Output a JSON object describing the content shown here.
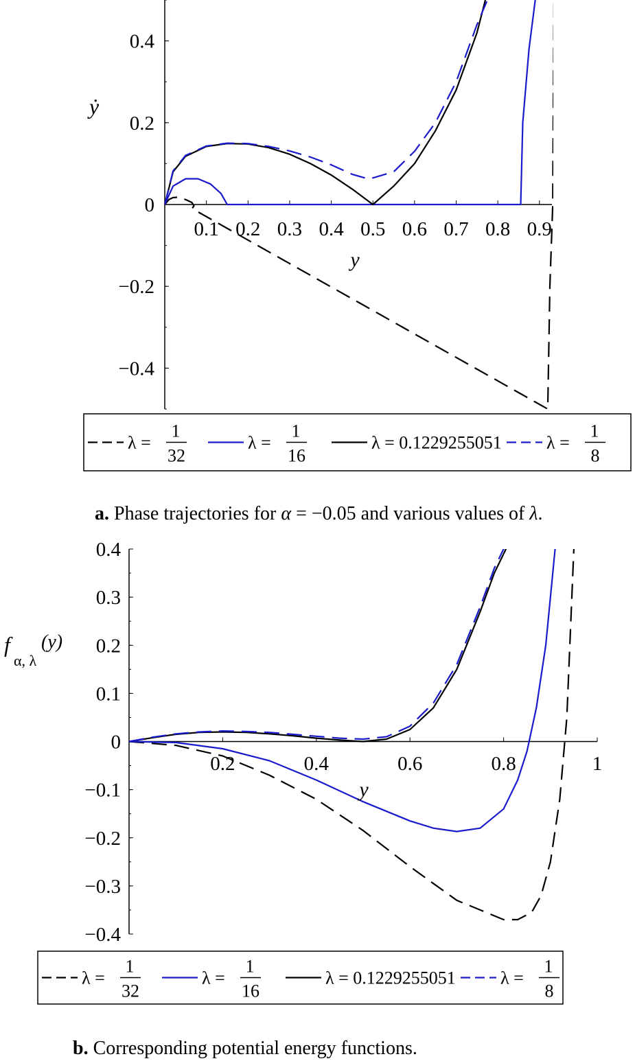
{
  "chart_data": [
    {
      "type": "line",
      "panel": "a",
      "xlabel": "y",
      "ylabel": "ẏ",
      "xlim": [
        0,
        0.93
      ],
      "ylim": [
        -0.5,
        0.5
      ],
      "xticks": [
        "0.1",
        "0.2",
        "0.3",
        "0.4",
        "0.5",
        "0.6",
        "0.7",
        "0.8",
        "0.9"
      ],
      "yticks": [
        "0.4",
        "0.2",
        "0",
        "−0.2",
        "−0.4"
      ],
      "series": [
        {
          "name": "λ = 1/32",
          "color": "#000000",
          "style": "dashed",
          "x": [
            0,
            0.01,
            0.02,
            0.035,
            0.05,
            0.065,
            0.07,
            0.066,
            0.92,
            0.925,
            0.932,
            0.935
          ],
          "y": [
            0,
            0.012,
            0.017,
            0.018,
            0.012,
            0.005,
            -0.003,
            -0.01,
            -0.5,
            -0.2,
            0,
            0.5
          ]
        },
        {
          "name": "λ = 1/16",
          "color": "#1a1acc",
          "style": "solid",
          "x": [
            0,
            0.02,
            0.05,
            0.08,
            0.11,
            0.135,
            0.15,
            0.855,
            0.86,
            0.875,
            0.89
          ],
          "y": [
            0,
            0.045,
            0.063,
            0.063,
            0.05,
            0.027,
            0,
            0,
            0.2,
            0.38,
            0.5
          ]
        },
        {
          "name": "λ = 0.1229255051",
          "color": "#000000",
          "style": "solid",
          "x": [
            0,
            0.02,
            0.05,
            0.1,
            0.15,
            0.2,
            0.25,
            0.3,
            0.35,
            0.4,
            0.45,
            0.5,
            0.55,
            0.6,
            0.65,
            0.7,
            0.75,
            0.77
          ],
          "y": [
            0,
            0.08,
            0.118,
            0.142,
            0.149,
            0.148,
            0.139,
            0.123,
            0.1,
            0.072,
            0.038,
            0,
            0.045,
            0.1,
            0.18,
            0.28,
            0.42,
            0.5
          ]
        },
        {
          "name": "λ = 1/8",
          "color": "#1a1acc",
          "style": "dashed",
          "x": [
            0,
            0.02,
            0.05,
            0.1,
            0.15,
            0.2,
            0.25,
            0.3,
            0.35,
            0.4,
            0.45,
            0.49,
            0.55,
            0.6,
            0.65,
            0.7,
            0.75,
            0.775
          ],
          "y": [
            0,
            0.082,
            0.12,
            0.143,
            0.15,
            0.149,
            0.142,
            0.131,
            0.116,
            0.097,
            0.074,
            0.062,
            0.08,
            0.13,
            0.2,
            0.3,
            0.44,
            0.5
          ]
        }
      ],
      "legend": {
        "position": "bottom",
        "items": [
          {
            "prefix": "λ =",
            "num": "1",
            "den": "32",
            "color": "#000000",
            "style": "dashed"
          },
          {
            "prefix": "λ =",
            "num": "1",
            "den": "16",
            "color": "#1a1acc",
            "style": "solid"
          },
          {
            "prefix": "λ = 0.1229255051",
            "num": "",
            "den": "",
            "color": "#000000",
            "style": "solid"
          },
          {
            "prefix": "λ =",
            "num": "1",
            "den": "8",
            "color": "#1a1acc",
            "style": "dashed"
          }
        ]
      }
    },
    {
      "type": "line",
      "panel": "b",
      "xlabel": "y",
      "ylabel_main": "f",
      "ylabel_sub": "α, λ",
      "ylabel_arg": "(y)",
      "xlim": [
        0,
        1
      ],
      "ylim": [
        -0.4,
        0.4
      ],
      "xticks": [
        "0.2",
        "0.4",
        "0.6",
        "0.8",
        "1"
      ],
      "yticks": [
        "0.4",
        "0.3",
        "0.2",
        "0.1",
        "0",
        "−0.1",
        "−0.2",
        "−0.3",
        "−0.4"
      ],
      "series": [
        {
          "name": "λ = 1/32",
          "color": "#000000",
          "style": "dashed",
          "x": [
            0,
            0.1,
            0.2,
            0.3,
            0.4,
            0.5,
            0.6,
            0.7,
            0.8,
            0.83,
            0.86,
            0.88,
            0.9,
            0.92,
            0.935,
            0.95
          ],
          "y": [
            0,
            -0.008,
            -0.03,
            -0.07,
            -0.12,
            -0.185,
            -0.26,
            -0.33,
            -0.37,
            -0.37,
            -0.355,
            -0.32,
            -0.25,
            -0.12,
            0.05,
            0.4
          ]
        },
        {
          "name": "λ = 1/16",
          "color": "#1a1acc",
          "style": "solid",
          "x": [
            0,
            0.1,
            0.2,
            0.3,
            0.4,
            0.5,
            0.6,
            0.65,
            0.7,
            0.75,
            0.8,
            0.83,
            0.85,
            0.87,
            0.89,
            0.91
          ],
          "y": [
            0,
            -0.002,
            -0.015,
            -0.04,
            -0.08,
            -0.125,
            -0.165,
            -0.18,
            -0.187,
            -0.18,
            -0.14,
            -0.08,
            -0.02,
            0.07,
            0.2,
            0.4
          ]
        },
        {
          "name": "λ = 0.1229255051",
          "color": "#000000",
          "style": "solid",
          "x": [
            0,
            0.05,
            0.1,
            0.15,
            0.2,
            0.25,
            0.3,
            0.35,
            0.4,
            0.45,
            0.5,
            0.55,
            0.6,
            0.65,
            0.7,
            0.75,
            0.78,
            0.81
          ],
          "y": [
            0,
            0.008,
            0.015,
            0.019,
            0.02,
            0.019,
            0.016,
            0.012,
            0.007,
            0.003,
            0,
            0.005,
            0.025,
            0.07,
            0.15,
            0.27,
            0.35,
            0.41
          ]
        },
        {
          "name": "λ = 1/8",
          "color": "#1a1acc",
          "style": "dashed",
          "x": [
            0,
            0.05,
            0.1,
            0.15,
            0.2,
            0.25,
            0.3,
            0.35,
            0.4,
            0.45,
            0.5,
            0.55,
            0.6,
            0.65,
            0.7,
            0.75,
            0.78,
            0.805
          ],
          "y": [
            0,
            0.009,
            0.016,
            0.02,
            0.022,
            0.021,
            0.019,
            0.015,
            0.011,
            0.007,
            0.005,
            0.01,
            0.032,
            0.08,
            0.16,
            0.28,
            0.36,
            0.41
          ]
        }
      ],
      "legend": {
        "position": "bottom",
        "items": [
          {
            "prefix": "λ =",
            "num": "1",
            "den": "32",
            "color": "#000000",
            "style": "dashed"
          },
          {
            "prefix": "λ =",
            "num": "1",
            "den": "16",
            "color": "#1a1acc",
            "style": "solid"
          },
          {
            "prefix": "λ = 0.1229255051",
            "num": "",
            "den": "",
            "color": "#000000",
            "style": "solid"
          },
          {
            "prefix": "λ =",
            "num": "1",
            "den": "8",
            "color": "#1a1acc",
            "style": "dashed"
          }
        ]
      }
    }
  ],
  "captions": {
    "a": {
      "label": "a.",
      "text_before": "Phase trajectories for ",
      "alpha": "α",
      "eq": " = −0.05",
      "text_after": " and various values of ",
      "lambda": "λ",
      "end": "."
    },
    "b": {
      "label": "b.",
      "text": "Corresponding potential energy functions."
    }
  }
}
